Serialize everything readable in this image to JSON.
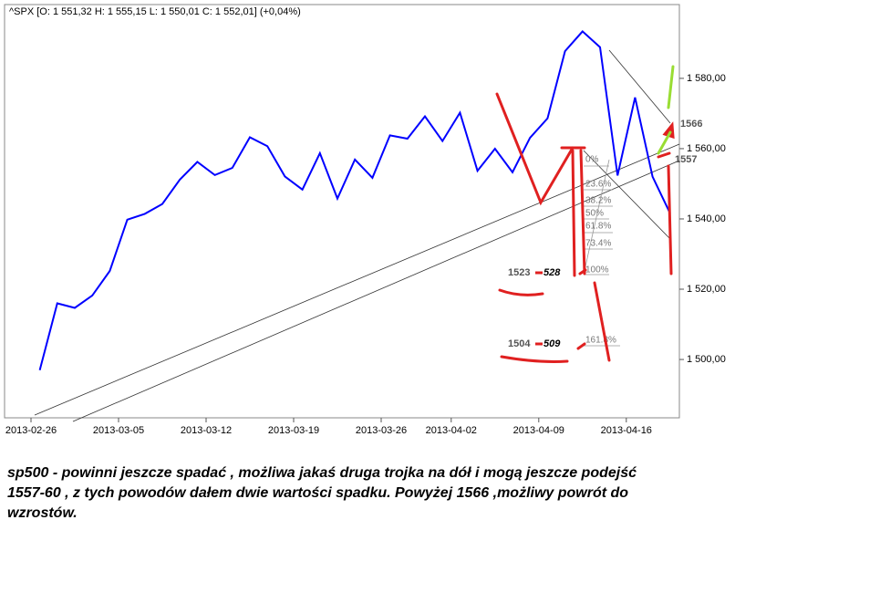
{
  "chart_data": {
    "type": "line",
    "title": "^SPX [O: 1 551,32  H: 1 555,15  L: 1 550,01  C: 1 552,01] (+0,04%)",
    "categories": [
      "2013-02-26",
      null,
      null,
      null,
      null,
      "2013-03-05",
      null,
      null,
      null,
      null,
      "2013-03-12",
      null,
      null,
      null,
      null,
      "2013-03-19",
      null,
      null,
      null,
      null,
      "2013-03-26",
      null,
      null,
      null,
      "2013-04-02",
      null,
      null,
      null,
      null,
      "2013-04-09",
      null,
      null,
      null,
      null,
      "2013-04-16",
      null,
      null
    ],
    "series": [
      {
        "name": "^SPX",
        "color": "#0000ff",
        "values": [
          1496.94,
          1515.99,
          1514.68,
          1518.2,
          1525.2,
          1539.79,
          1541.46,
          1544.26,
          1551.18,
          1556.22,
          1552.48,
          1554.52,
          1563.23,
          1560.7,
          1552.1,
          1548.34,
          1558.71,
          1545.8,
          1556.89,
          1551.69,
          1563.77,
          1562.85,
          1569.19,
          1562.17,
          1570.25,
          1553.69,
          1559.98,
          1553.28,
          1563.07,
          1568.61,
          1587.73,
          1593.37,
          1588.85,
          1552.36,
          1574.57,
          1552.01,
          1541.61
        ]
      }
    ],
    "ylim": [
      1483.4,
      1601
    ],
    "yticks": [
      {
        "value": 1500,
        "label": "1 500,00"
      },
      {
        "value": 1520,
        "label": "1 520,00"
      },
      {
        "value": 1540,
        "label": "1 540,00"
      },
      {
        "value": 1560,
        "label": "1 560,00"
      },
      {
        "value": 1580,
        "label": "1 580,00"
      }
    ],
    "annotations": {
      "level_high": "1566",
      "level_mid": "1557",
      "target1_a": "1523",
      "target1_b": "528",
      "target2_a": "1504",
      "target2_b": "509",
      "fib": [
        "0%",
        "23.6%",
        "38.2%",
        "50%",
        "61.8%",
        "73.4%",
        "100%",
        "161.8%"
      ]
    },
    "comment": "sp500 - powinni jeszcze spadać , możliwa  jakaś druga trojka na dół  i mogą jeszcze podejść 1557-60 , z tych powodów dałem dwie wartości  spadku. Powyżej 1566  ,możliwy powrót do wzrostów."
  }
}
